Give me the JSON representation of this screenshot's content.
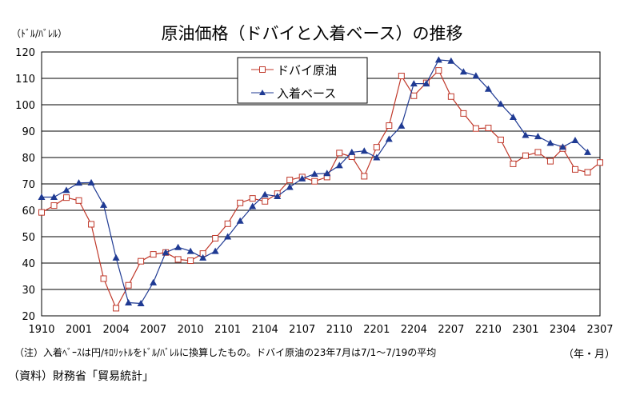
{
  "unit_label": "（ﾄﾞﾙ/ﾊﾞﾚﾙ）",
  "x_unit": "（年・月）",
  "note": "（注）入着ﾍﾞｰｽは円/ｷﾛﾘｯﾄﾙをﾄﾞﾙ/ﾊﾞﾚﾙに換算したもの。ドバイ原油の23年7月は7/1～7/19の平均",
  "source": "（資料）財務省「貿易統計」",
  "chart_data": {
    "type": "line",
    "title": "原油価格（ドバイと入着ベース）の推移",
    "xlabel": "",
    "ylabel": "",
    "ylim": [
      20,
      120
    ],
    "yticks": [
      20,
      30,
      40,
      50,
      60,
      70,
      80,
      90,
      100,
      110,
      120
    ],
    "x": [
      "1910",
      "1911",
      "1912",
      "2001",
      "2002",
      "2003",
      "2004",
      "2005",
      "2006",
      "2007",
      "2008",
      "2009",
      "2010",
      "2011",
      "2012",
      "2101",
      "2102",
      "2103",
      "2104",
      "2105",
      "2106",
      "2107",
      "2108",
      "2109",
      "2110",
      "2111",
      "2112",
      "2201",
      "2202",
      "2203",
      "2204",
      "2205",
      "2206",
      "2207",
      "2208",
      "2209",
      "2210",
      "2211",
      "2212",
      "2301",
      "2302",
      "2303",
      "2304",
      "2305",
      "2306",
      "2307"
    ],
    "xtick_labels": [
      "1910",
      "2001",
      "2004",
      "2007",
      "2010",
      "2101",
      "2104",
      "2107",
      "2110",
      "2201",
      "2204",
      "2207",
      "2210",
      "2301",
      "2304",
      "2307"
    ],
    "grid": "horizontal",
    "legend_position": "top-left",
    "series": [
      {
        "name": "ドバイ原油",
        "color": "#c0392b",
        "marker": "open-square",
        "values": [
          59.2,
          61.8,
          64.8,
          63.7,
          54.7,
          34.1,
          22.9,
          31.6,
          40.7,
          43.3,
          44.0,
          41.4,
          40.9,
          43.6,
          49.4,
          54.9,
          62.8,
          64.5,
          63.4,
          66.3,
          71.5,
          72.6,
          71.0,
          72.6,
          81.7,
          80.3,
          72.9,
          83.9,
          92.1,
          110.9,
          103.4,
          108.3,
          113.0,
          103.1,
          96.7,
          91.0,
          91.2,
          86.7,
          77.6,
          80.7,
          82.0,
          78.6,
          83.4,
          75.5,
          74.4,
          78.1
        ]
      },
      {
        "name": "入着ベース",
        "color": "#1f3a93",
        "marker": "filled-triangle",
        "values": [
          65.0,
          65.0,
          67.6,
          70.4,
          70.5,
          62.0,
          42.0,
          25.0,
          24.7,
          32.6,
          44.0,
          46.0,
          44.5,
          42.0,
          44.5,
          50.0,
          56.0,
          61.5,
          66.0,
          65.3,
          68.8,
          72.0,
          73.8,
          74.0,
          77.0,
          82.0,
          82.5,
          80.0,
          87.0,
          92.0,
          108.0,
          108.0,
          117.0,
          116.6,
          112.5,
          111.0,
          106.0,
          100.3,
          95.3,
          88.5,
          88.0,
          85.5,
          84.0,
          86.5,
          82.0,
          null
        ]
      }
    ]
  }
}
